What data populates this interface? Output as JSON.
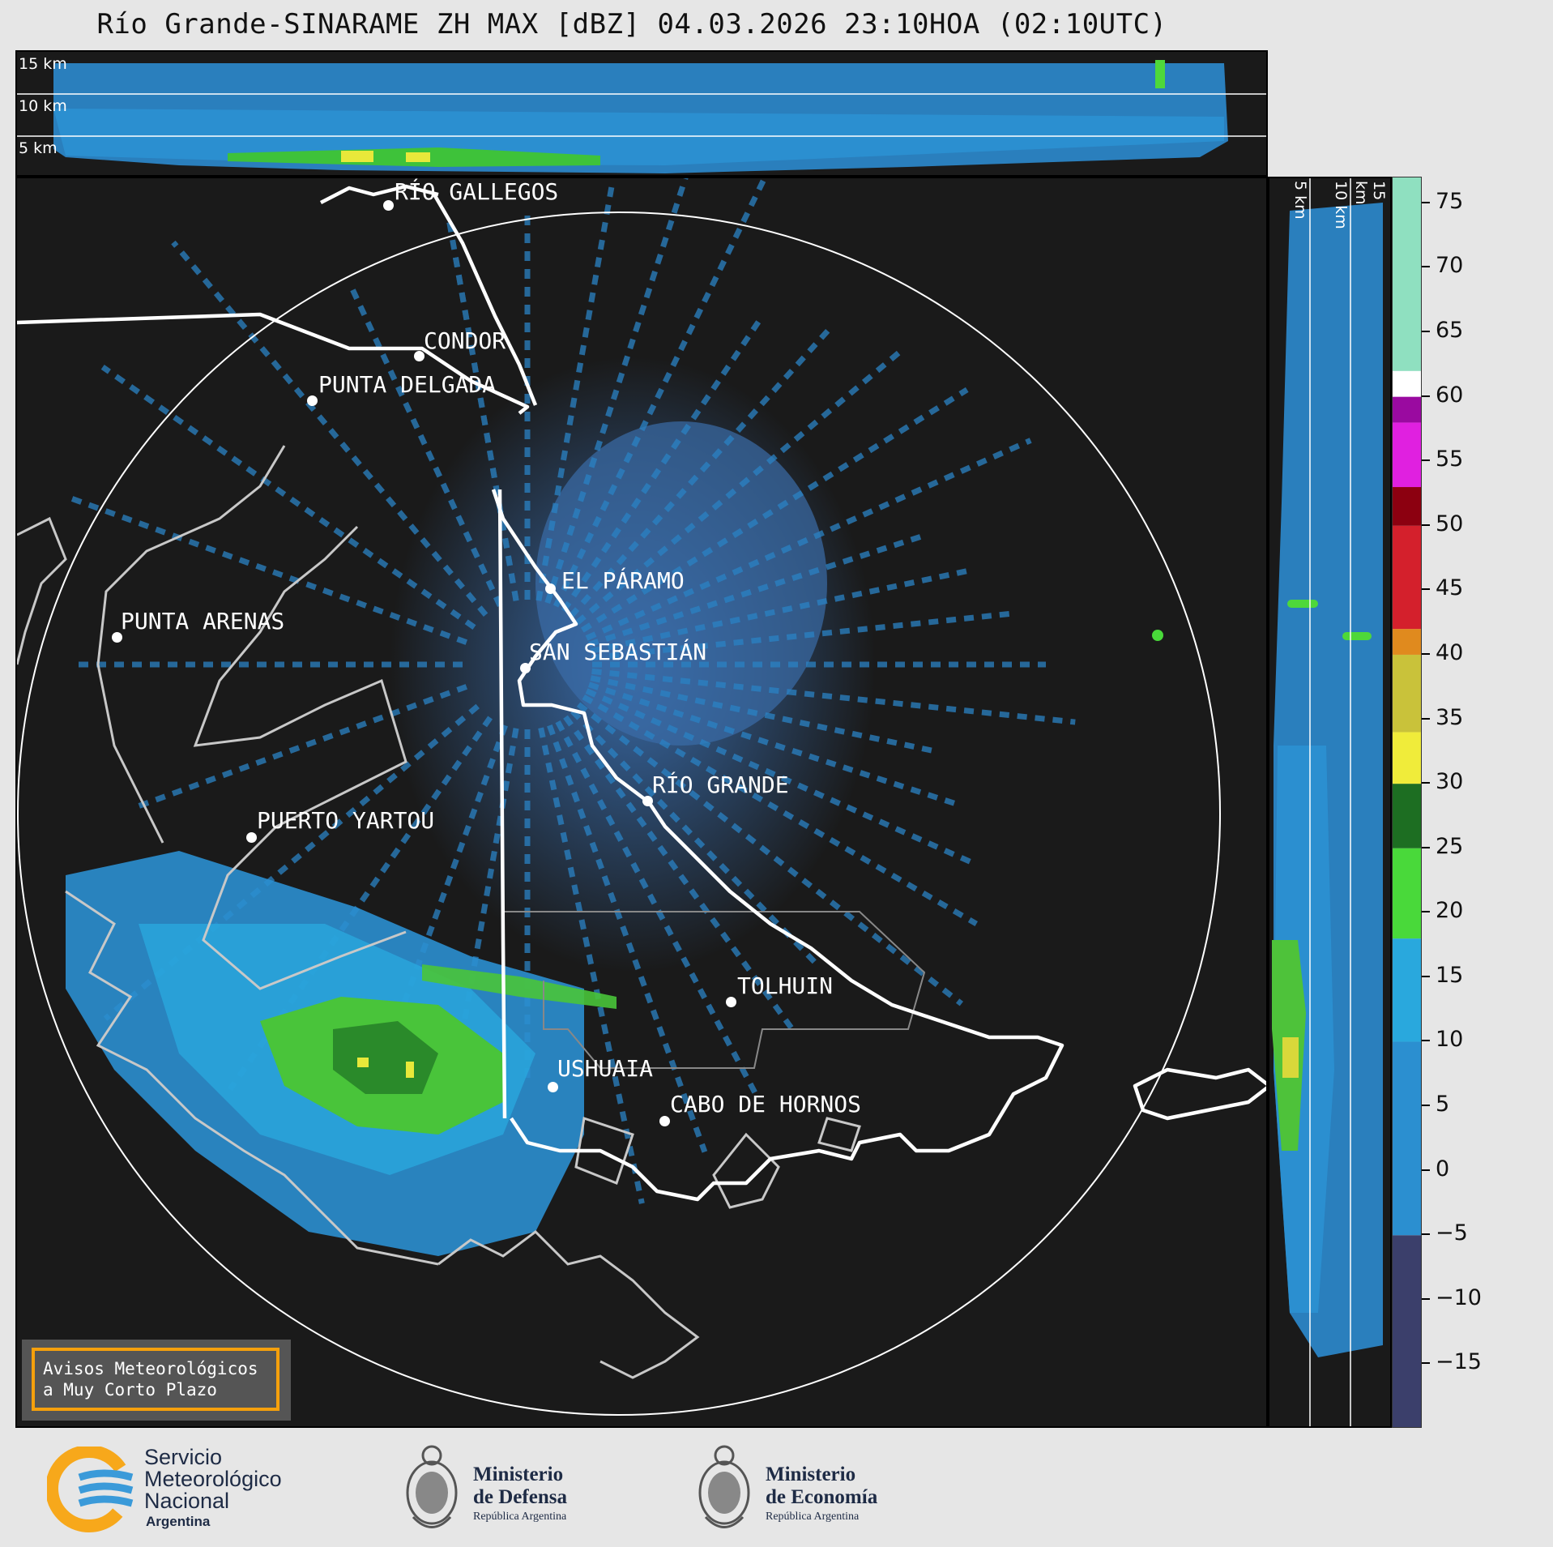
{
  "title": "Río Grande-SINARAME ZH MAX [dBZ] 04.03.2026 23:10HOA (02:10UTC)",
  "height_labels": [
    "15 km",
    "10 km",
    "5 km"
  ],
  "cities": [
    {
      "name": "RÍO GALLEGOS"
    },
    {
      "name": "CONDOR"
    },
    {
      "name": "PUNTA DELGADA"
    },
    {
      "name": "EL PÁRAMO"
    },
    {
      "name": "PUNTA ARENAS"
    },
    {
      "name": "SAN SEBASTIÁN"
    },
    {
      "name": "RÍO GRANDE"
    },
    {
      "name": "PUERTO YARTOU"
    },
    {
      "name": "TOLHUIN"
    },
    {
      "name": "USHUAIA"
    },
    {
      "name": "CABO DE HORNOS"
    }
  ],
  "colorbar": {
    "unit": "dBZ",
    "min": -20,
    "max": 77,
    "ticks": [
      "75",
      "70",
      "65",
      "60",
      "55",
      "50",
      "45",
      "40",
      "35",
      "30",
      "25",
      "20",
      "15",
      "10",
      "5",
      "0",
      "−5",
      "−10",
      "−15"
    ],
    "colors": {
      "low": "#3b3f6b",
      "blue": "#2b8fd0",
      "cyan": "#29a8dd",
      "green": "#49d93a",
      "dkgreen": "#1d6e22",
      "yellow": "#f0ec3a",
      "olive": "#c9c23a",
      "orange": "#e08a1e",
      "red": "#d4202c",
      "darkred": "#8c0010",
      "magenta": "#e020e0",
      "purple": "#9a0aa0",
      "white": "#ffffff",
      "mint": "#8fe0c0"
    }
  },
  "avisos": {
    "line1": "Avisos Meteorológicos",
    "line2": "a Muy Corto Plazo"
  },
  "logos": {
    "smn": {
      "line1": "Servicio",
      "line2": "Meteorológico",
      "line3": "Nacional",
      "line4": "Argentina"
    },
    "defensa": {
      "line1": "Ministerio",
      "line2": "de Defensa",
      "line3": "República Argentina"
    },
    "economia": {
      "line1": "Ministerio",
      "line2": "de Economía",
      "line3": "República Argentina"
    }
  }
}
